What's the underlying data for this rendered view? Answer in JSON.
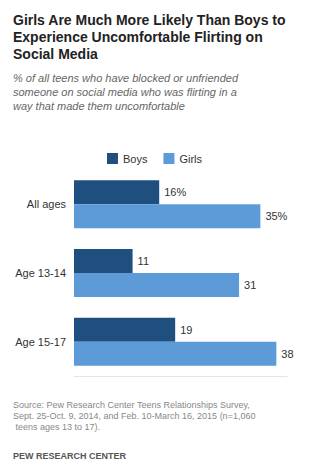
{
  "chart_data": {
    "type": "bar",
    "orientation": "horizontal",
    "title": "Girls Are Much More Likely Than Boys to Experience Uncomfortable Flirting on Social Media",
    "subtitle": "% of all teens who have blocked or unfriended someone on social media who was flirting in a way that made them uncomfortable",
    "categories": [
      "All ages",
      "Age 13-14",
      "Age 15-17"
    ],
    "series": [
      {
        "name": "Boys",
        "color": "#1f4f7f",
        "values": [
          16,
          11,
          19
        ],
        "value_labels": [
          "16%",
          "11",
          "19"
        ]
      },
      {
        "name": "Girls",
        "color": "#5d9bd8",
        "values": [
          35,
          31,
          38
        ],
        "value_labels": [
          "35%",
          "31",
          "38"
        ]
      }
    ],
    "xlim": [
      0,
      40
    ],
    "grid": false,
    "legend": "top",
    "data_labels": true,
    "tick_labels": "y",
    "source": "Source: Pew Research Center Teens Relationships Survey, Sept. 25-Oct. 9, 2014, and Feb. 10-March 16, 2015 (n=1,060 teens ages 13 to 17).",
    "credit": "PEW RESEARCH CENTER"
  }
}
